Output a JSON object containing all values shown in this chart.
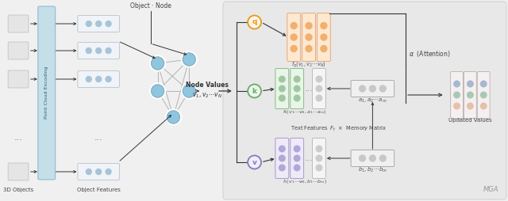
{
  "bg_color": "#f0f0f0",
  "right_bg": "#e8e8e8",
  "pce_color": "#c5dfe8",
  "node_blue": "#8ec6e0",
  "node_outline": "#aaaaaa",
  "arrow_color": "#333333",
  "q_color": "#e8971e",
  "q_fill": "#fef5e4",
  "k_color": "#6aaa6a",
  "k_fill": "#eaf5ea",
  "v_color": "#8878c0",
  "v_fill": "#f0eef8",
  "q_dot": "#f0b070",
  "k_dot": "#a0c8a0",
  "v_dot": "#b0a8d8",
  "mem_dot": "#c8c8c8",
  "upd_dot1": "#e8c0a8",
  "upd_dot2": "#a8c8b8",
  "upd_dot3": "#a8b8d0",
  "feat_fill": "#f0f4f8",
  "feat_dot": "#a8c4d8",
  "label_3d": "3D Objects",
  "label_obj": "Object Features",
  "label_pce": "Point Cloud Encoding",
  "label_on": "Object · Node",
  "label_nv": "Node Values",
  "label_nv2": "$v_1, v_2 \\cdots v_N$",
  "label_fq": "$f_q(v_1, v_2\\cdots v_N)$",
  "label_fk": "$f_k(v_1\\cdots v_N, a_1\\cdots a_m)$",
  "label_fv": "$f_v(v_1\\cdots v_N, b_1\\cdots b_m)$",
  "label_am": "$a_1, a_2\\cdots a_m$",
  "label_bm": "$b_1, b_2\\cdots b_m$",
  "label_tf": "Text Features  $F_t$  $\\times$  Memory Matrix",
  "label_alpha": "$\\alpha$  (Attention)",
  "label_uv": "Updated Values",
  "label_mga": "MGA"
}
